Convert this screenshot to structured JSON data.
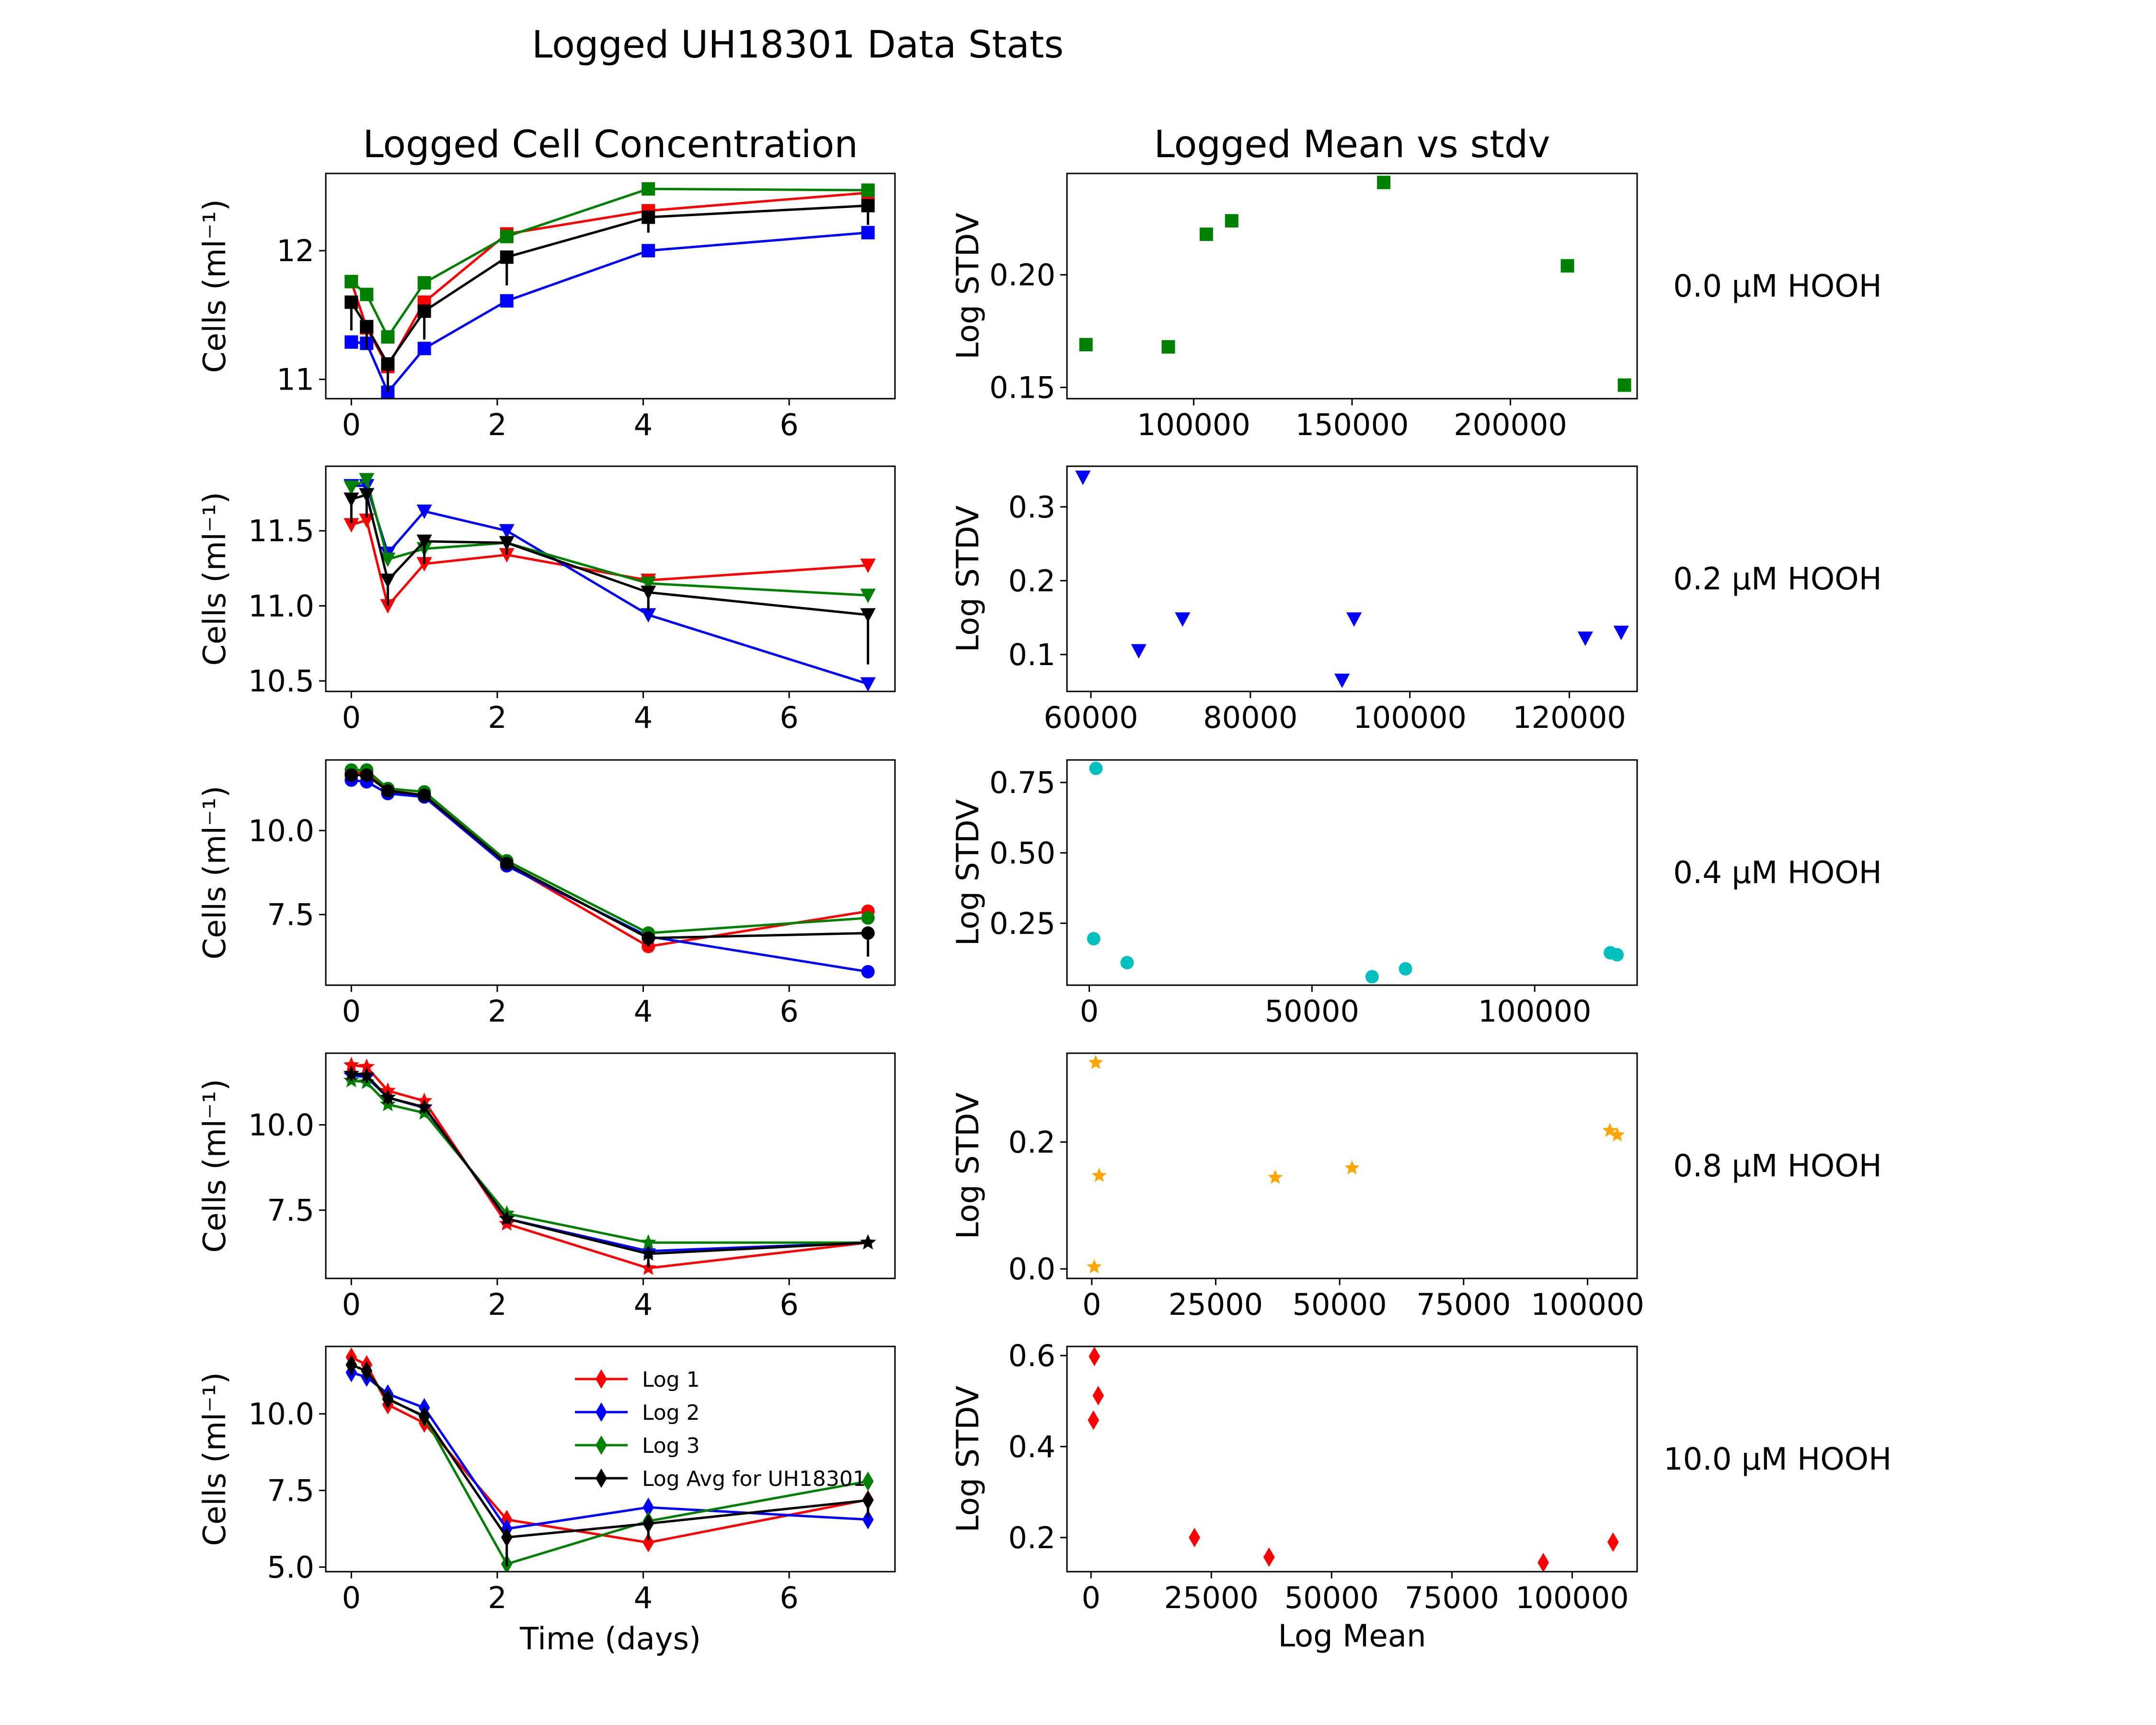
{
  "figure": {
    "title": "Logged UH18301 Data Stats"
  },
  "columns": {
    "left_title": "Logged Cell Concentration",
    "right_title": "Logged Mean vs stdv"
  },
  "labels": {
    "left_ylabel": "Cells (ml⁻¹)",
    "right_ylabel": "Log STDV",
    "left_xlabel": "Time (days)",
    "right_xlabel": "Log Mean"
  },
  "legend": {
    "placement": "upper-center (bottom-left panel)",
    "entries": [
      "Log 1",
      "Log 2",
      "Log 3",
      "Log Avg for UH18301"
    ]
  },
  "colors": {
    "log1": "#ff0000",
    "log2": "#0000ff",
    "log3": "#008000",
    "avg": "#000000",
    "scatter_0.0": "#008000",
    "scatter_0.2": "#0000ff",
    "scatter_0.4": "#00bfbf",
    "scatter_0.8": "#ffa500",
    "scatter_10.0": "#ff0000"
  },
  "chart_data": [
    {
      "type": "line",
      "row": 0,
      "col": 0,
      "marker": "square",
      "x": [
        0,
        0.21,
        0.5,
        1,
        2.13,
        4.07,
        7.08
      ],
      "series": [
        {
          "name": "Log 1",
          "values": [
            11.76,
            11.4,
            11.1,
            11.6,
            12.13,
            12.31,
            12.45
          ]
        },
        {
          "name": "Log 2",
          "values": [
            11.29,
            11.28,
            10.9,
            11.24,
            11.61,
            12.0,
            12.14
          ]
        },
        {
          "name": "Log 3",
          "values": [
            11.76,
            11.66,
            11.33,
            11.75,
            12.11,
            12.48,
            12.47
          ]
        },
        {
          "name": "Log Avg for UH18301",
          "values": [
            11.6,
            11.41,
            11.12,
            11.53,
            11.95,
            12.26,
            12.35
          ],
          "err": [
            0.22,
            0.18,
            0.22,
            0.22,
            0.22,
            0.12,
            0.15
          ]
        }
      ],
      "xlim": [
        -0.35,
        7.45
      ],
      "ylim": [
        10.85,
        12.6
      ],
      "xticks": [
        0,
        2,
        4,
        6
      ],
      "yticks": [
        11,
        12
      ]
    },
    {
      "type": "line",
      "row": 1,
      "col": 0,
      "marker": "triangle_down",
      "x": [
        0,
        0.21,
        0.5,
        1,
        2.13,
        4.07,
        7.08
      ],
      "series": [
        {
          "name": "Log 1",
          "values": [
            11.54,
            11.57,
            11.0,
            11.28,
            11.34,
            11.17,
            11.27
          ]
        },
        {
          "name": "Log 2",
          "values": [
            11.8,
            11.8,
            11.35,
            11.63,
            11.5,
            10.94,
            10.48
          ]
        },
        {
          "name": "Log 3",
          "values": [
            11.79,
            11.84,
            11.31,
            11.38,
            11.42,
            11.15,
            11.07
          ]
        },
        {
          "name": "Log Avg for UH18301",
          "values": [
            11.71,
            11.74,
            11.17,
            11.43,
            11.42,
            11.09,
            10.94
          ],
          "err": [
            0.16,
            0.15,
            0.17,
            0.15,
            0.08,
            0.12,
            0.33
          ]
        }
      ],
      "xlim": [
        -0.35,
        7.45
      ],
      "ylim": [
        10.43,
        11.93
      ],
      "xticks": [
        0,
        2,
        4,
        6
      ],
      "yticks": [
        10.5,
        11.0,
        11.5
      ]
    },
    {
      "type": "line",
      "row": 2,
      "col": 0,
      "marker": "circle",
      "x": [
        0,
        0.21,
        0.5,
        1,
        2.13,
        4.07,
        7.08
      ],
      "series": [
        {
          "name": "Log 1",
          "values": [
            11.7,
            11.75,
            11.2,
            11.05,
            9.0,
            6.55,
            7.6
          ]
        },
        {
          "name": "Log 2",
          "values": [
            11.5,
            11.45,
            11.1,
            11.0,
            8.95,
            6.85,
            5.8
          ]
        },
        {
          "name": "Log 3",
          "values": [
            11.8,
            11.8,
            11.25,
            11.15,
            9.1,
            6.95,
            7.4
          ]
        },
        {
          "name": "Log Avg for UH18301",
          "values": [
            11.65,
            11.65,
            11.18,
            11.05,
            9.02,
            6.8,
            6.95
          ],
          "err": [
            0.15,
            0.18,
            0.1,
            0.1,
            0.1,
            0.25,
            0.7
          ]
        }
      ],
      "xlim": [
        -0.35,
        7.45
      ],
      "ylim": [
        5.4,
        12.1
      ],
      "xticks": [
        0,
        2,
        4,
        6
      ],
      "yticks": [
        7.5,
        10.0
      ]
    },
    {
      "type": "line",
      "row": 3,
      "col": 0,
      "marker": "star",
      "x": [
        0,
        0.21,
        0.5,
        1,
        2.13,
        4.07,
        7.08
      ],
      "series": [
        {
          "name": "Log 1",
          "values": [
            11.75,
            11.7,
            11.0,
            10.7,
            7.1,
            5.8,
            6.55
          ]
        },
        {
          "name": "Log 2",
          "values": [
            11.45,
            11.4,
            10.8,
            10.5,
            7.25,
            6.3,
            6.55
          ]
        },
        {
          "name": "Log 3",
          "values": [
            11.3,
            11.25,
            10.6,
            10.35,
            7.4,
            6.55,
            6.55
          ]
        },
        {
          "name": "Log Avg for UH18301",
          "values": [
            11.5,
            11.45,
            10.8,
            10.52,
            7.25,
            6.22,
            6.55
          ],
          "err": [
            0.22,
            0.22,
            0.2,
            0.18,
            0.15,
            0.4,
            0.02
          ]
        }
      ],
      "xlim": [
        -0.35,
        7.45
      ],
      "ylim": [
        5.5,
        12.1
      ],
      "xticks": [
        0,
        2,
        4,
        6
      ],
      "yticks": [
        7.5,
        10.0
      ]
    },
    {
      "type": "line",
      "row": 4,
      "col": 0,
      "marker": "diamond",
      "x": [
        0,
        0.21,
        0.5,
        1,
        2.13,
        4.07,
        7.08
      ],
      "series": [
        {
          "name": "Log 1",
          "values": [
            11.85,
            11.6,
            10.3,
            9.7,
            6.55,
            5.8,
            7.2
          ]
        },
        {
          "name": "Log 2",
          "values": [
            11.35,
            11.2,
            10.65,
            10.2,
            6.25,
            6.95,
            6.55
          ]
        },
        {
          "name": "Log 3",
          "values": [
            11.6,
            11.4,
            10.5,
            9.9,
            5.1,
            6.5,
            7.8
          ]
        },
        {
          "name": "Log Avg for UH18301",
          "values": [
            11.6,
            11.4,
            10.48,
            9.93,
            5.97,
            6.42,
            7.18
          ],
          "err": [
            0.35,
            0.3,
            0.25,
            0.3,
            0.95,
            0.55,
            0.55
          ]
        }
      ],
      "xlim": [
        -0.35,
        7.45
      ],
      "ylim": [
        4.85,
        12.2
      ],
      "xticks": [
        0,
        2,
        4,
        6
      ],
      "yticks": [
        5.0,
        7.5,
        10.0
      ]
    },
    {
      "type": "scatter",
      "row": 0,
      "col": 1,
      "marker": "square",
      "color": "#008000",
      "x": [
        66000,
        92000,
        104000,
        112000,
        160000,
        218000,
        236000
      ],
      "y": [
        0.169,
        0.168,
        0.218,
        0.224,
        0.241,
        0.204,
        0.151
      ],
      "xlim": [
        60000,
        240000
      ],
      "ylim": [
        0.145,
        0.245
      ],
      "xticks": [
        100000,
        150000,
        200000
      ],
      "yticks": [
        0.15,
        0.2
      ],
      "annotation": "0.0 µM HOOH"
    },
    {
      "type": "scatter",
      "row": 1,
      "col": 1,
      "marker": "triangle_down",
      "color": "#0000ff",
      "x": [
        59000,
        66000,
        71500,
        91500,
        93000,
        122000,
        126500
      ],
      "y": [
        0.34,
        0.105,
        0.148,
        0.065,
        0.148,
        0.122,
        0.13
      ],
      "xlim": [
        57000,
        128500
      ],
      "ylim": [
        0.05,
        0.355
      ],
      "xticks": [
        60000,
        80000,
        100000,
        120000
      ],
      "yticks": [
        0.1,
        0.2,
        0.3
      ],
      "annotation": "0.2 µM HOOH"
    },
    {
      "type": "scatter",
      "row": 2,
      "col": 1,
      "marker": "circle",
      "color": "#00bfbf",
      "x": [
        1000,
        1500,
        8500,
        63500,
        71000,
        117000,
        118500
      ],
      "y": [
        0.195,
        0.8,
        0.11,
        0.06,
        0.088,
        0.145,
        0.138
      ],
      "xlim": [
        -5000,
        123000
      ],
      "ylim": [
        0.03,
        0.83
      ],
      "xticks": [
        0,
        50000,
        100000
      ],
      "yticks": [
        0.25,
        0.5,
        0.75
      ],
      "annotation": "0.4 µM HOOH"
    },
    {
      "type": "scatter",
      "row": 3,
      "col": 1,
      "marker": "star",
      "color": "#ffa500",
      "x": [
        500,
        800,
        1500,
        37000,
        52500,
        104500,
        106000
      ],
      "y": [
        0.003,
        0.325,
        0.147,
        0.144,
        0.159,
        0.218,
        0.211
      ],
      "xlim": [
        -5000,
        110000
      ],
      "ylim": [
        -0.015,
        0.34
      ],
      "xticks": [
        0,
        25000,
        50000,
        75000,
        100000
      ],
      "yticks": [
        0.0,
        0.2
      ],
      "annotation": "0.8 µM HOOH"
    },
    {
      "type": "scatter",
      "row": 4,
      "col": 1,
      "marker": "diamond",
      "color": "#ff0000",
      "x": [
        500,
        700,
        1500,
        21500,
        37000,
        94000,
        108500
      ],
      "y": [
        0.458,
        0.598,
        0.512,
        0.2,
        0.157,
        0.145,
        0.19
      ],
      "xlim": [
        -5000,
        113500
      ],
      "ylim": [
        0.125,
        0.62
      ],
      "xticks": [
        0,
        25000,
        50000,
        75000,
        100000
      ],
      "yticks": [
        0.2,
        0.4,
        0.6
      ],
      "annotation": "10.0 µM HOOH"
    }
  ]
}
